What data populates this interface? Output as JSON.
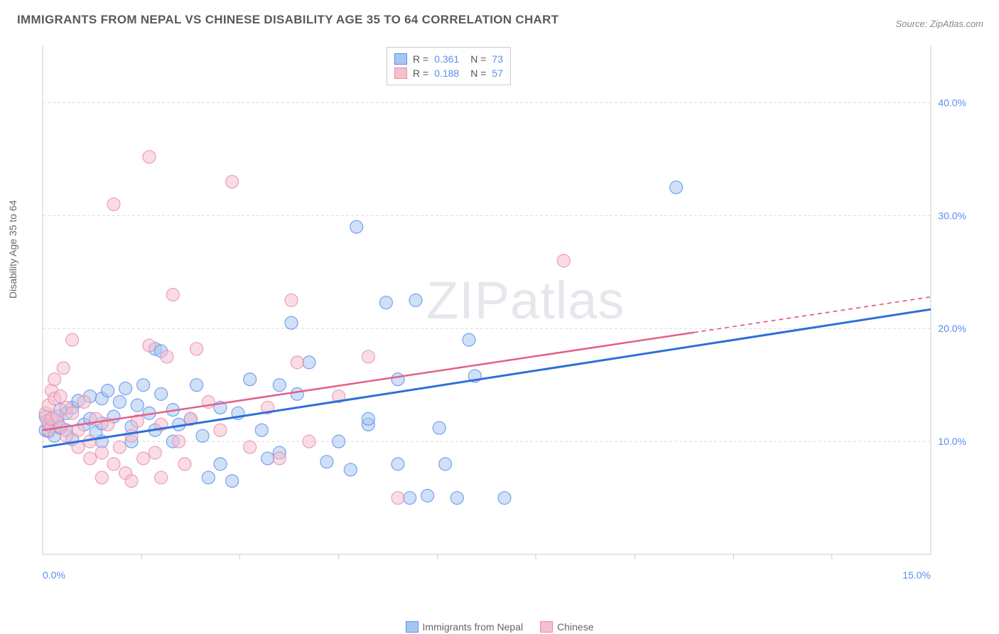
{
  "title": "IMMIGRANTS FROM NEPAL VS CHINESE DISABILITY AGE 35 TO 64 CORRELATION CHART",
  "source": "Source: ZipAtlas.com",
  "y_axis_label": "Disability Age 35 to 64",
  "watermark": "ZIPatlas",
  "chart": {
    "type": "scatter",
    "xlim": [
      0,
      15
    ],
    "ylim": [
      0,
      45
    ],
    "x_ticks": [
      0.0,
      15.0
    ],
    "x_tick_labels": [
      "0.0%",
      "15.0%"
    ],
    "x_minor_ticks": [
      1.67,
      3.33,
      5.0,
      6.67,
      8.33,
      10.0,
      11.67,
      13.33
    ],
    "y_ticks": [
      10.0,
      20.0,
      30.0,
      40.0
    ],
    "y_tick_labels": [
      "10.0%",
      "20.0%",
      "30.0%",
      "40.0%"
    ],
    "background_color": "#ffffff",
    "grid_color": "#dcdcdc",
    "plot_border_color": "#cccccc",
    "marker_radius": 9,
    "marker_opacity": 0.55,
    "series": [
      {
        "name": "Immigrants from Nepal",
        "color_fill": "#a8c7f0",
        "color_stroke": "#5b8def",
        "r_value": "0.361",
        "n_value": "73",
        "trend": {
          "x0": 0,
          "y0": 9.5,
          "x1": 15,
          "y1": 21.7,
          "solid_until": 15,
          "color": "#2e6fd9",
          "width": 3
        },
        "points": [
          [
            0.05,
            11.0
          ],
          [
            0.05,
            12.2
          ],
          [
            0.1,
            11.5
          ],
          [
            0.1,
            10.9
          ],
          [
            0.15,
            11.3
          ],
          [
            0.2,
            12.0
          ],
          [
            0.2,
            10.5
          ],
          [
            0.25,
            11.9
          ],
          [
            0.3,
            11.2
          ],
          [
            0.3,
            12.8
          ],
          [
            0.4,
            12.5
          ],
          [
            0.4,
            11.0
          ],
          [
            0.5,
            13.0
          ],
          [
            0.5,
            10.2
          ],
          [
            0.6,
            13.6
          ],
          [
            0.7,
            11.5
          ],
          [
            0.8,
            14.0
          ],
          [
            0.8,
            12.0
          ],
          [
            0.9,
            10.8
          ],
          [
            1.0,
            13.8
          ],
          [
            1.0,
            11.6
          ],
          [
            1.0,
            10.0
          ],
          [
            1.1,
            14.5
          ],
          [
            1.2,
            12.2
          ],
          [
            1.3,
            13.5
          ],
          [
            1.4,
            14.7
          ],
          [
            1.5,
            11.3
          ],
          [
            1.5,
            10.0
          ],
          [
            1.7,
            15.0
          ],
          [
            1.8,
            12.5
          ],
          [
            1.9,
            11.0
          ],
          [
            1.9,
            18.2
          ],
          [
            2.0,
            18.0
          ],
          [
            2.0,
            14.2
          ],
          [
            2.2,
            12.8
          ],
          [
            2.3,
            11.5
          ],
          [
            2.5,
            12.0
          ],
          [
            2.6,
            15.0
          ],
          [
            2.7,
            10.5
          ],
          [
            2.8,
            6.8
          ],
          [
            3.0,
            13.0
          ],
          [
            3.0,
            8.0
          ],
          [
            3.2,
            6.5
          ],
          [
            3.3,
            12.5
          ],
          [
            3.5,
            15.5
          ],
          [
            3.7,
            11.0
          ],
          [
            3.8,
            8.5
          ],
          [
            4.0,
            9.0
          ],
          [
            4.2,
            20.5
          ],
          [
            4.3,
            14.2
          ],
          [
            4.5,
            17.0
          ],
          [
            4.8,
            8.2
          ],
          [
            5.0,
            10.0
          ],
          [
            5.2,
            7.5
          ],
          [
            5.3,
            29.0
          ],
          [
            5.5,
            11.5
          ],
          [
            5.8,
            22.3
          ],
          [
            6.0,
            15.5
          ],
          [
            6.0,
            8.0
          ],
          [
            6.2,
            5.0
          ],
          [
            6.3,
            22.5
          ],
          [
            6.5,
            5.2
          ],
          [
            6.7,
            11.2
          ],
          [
            6.8,
            8.0
          ],
          [
            7.0,
            5.0
          ],
          [
            7.2,
            19.0
          ],
          [
            7.3,
            15.8
          ],
          [
            7.8,
            5.0
          ],
          [
            10.7,
            32.5
          ],
          [
            5.5,
            12.0
          ],
          [
            4.0,
            15.0
          ],
          [
            2.2,
            10.0
          ],
          [
            1.6,
            13.2
          ]
        ]
      },
      {
        "name": "Chinese",
        "color_fill": "#f4c0cf",
        "color_stroke": "#e88ba5",
        "r_value": "0.188",
        "n_value": "57",
        "trend": {
          "x0": 0,
          "y0": 11.0,
          "x1": 15,
          "y1": 22.8,
          "solid_until": 11,
          "color": "#e26088",
          "width": 2.5
        },
        "points": [
          [
            0.05,
            12.5
          ],
          [
            0.08,
            11.8
          ],
          [
            0.1,
            11.0
          ],
          [
            0.1,
            13.2
          ],
          [
            0.15,
            14.5
          ],
          [
            0.15,
            12.0
          ],
          [
            0.2,
            13.8
          ],
          [
            0.2,
            15.5
          ],
          [
            0.25,
            12.2
          ],
          [
            0.3,
            14.0
          ],
          [
            0.3,
            11.3
          ],
          [
            0.35,
            16.5
          ],
          [
            0.4,
            13.0
          ],
          [
            0.4,
            10.5
          ],
          [
            0.5,
            19.0
          ],
          [
            0.5,
            12.5
          ],
          [
            0.6,
            11.0
          ],
          [
            0.6,
            9.5
          ],
          [
            0.7,
            13.5
          ],
          [
            0.8,
            10.0
          ],
          [
            0.8,
            8.5
          ],
          [
            0.9,
            12.0
          ],
          [
            1.0,
            9.0
          ],
          [
            1.0,
            6.8
          ],
          [
            1.1,
            11.5
          ],
          [
            1.2,
            8.0
          ],
          [
            1.2,
            31.0
          ],
          [
            1.3,
            9.5
          ],
          [
            1.4,
            7.2
          ],
          [
            1.5,
            10.5
          ],
          [
            1.5,
            6.5
          ],
          [
            1.6,
            11.8
          ],
          [
            1.7,
            8.5
          ],
          [
            1.8,
            35.2
          ],
          [
            1.8,
            18.5
          ],
          [
            1.9,
            9.0
          ],
          [
            2.0,
            6.8
          ],
          [
            2.1,
            17.5
          ],
          [
            2.2,
            23.0
          ],
          [
            2.3,
            10.0
          ],
          [
            2.4,
            8.0
          ],
          [
            2.5,
            12.0
          ],
          [
            2.6,
            18.2
          ],
          [
            2.8,
            13.5
          ],
          [
            3.0,
            11.0
          ],
          [
            3.2,
            33.0
          ],
          [
            3.5,
            9.5
          ],
          [
            3.8,
            13.0
          ],
          [
            4.0,
            8.5
          ],
          [
            4.2,
            22.5
          ],
          [
            4.3,
            17.0
          ],
          [
            4.5,
            10.0
          ],
          [
            5.0,
            14.0
          ],
          [
            5.5,
            17.5
          ],
          [
            6.0,
            5.0
          ],
          [
            8.8,
            26.0
          ],
          [
            2.0,
            11.5
          ]
        ]
      }
    ]
  },
  "legend_bottom": [
    {
      "label": "Immigrants from Nepal",
      "fill": "#a8c7f0",
      "stroke": "#5b8def"
    },
    {
      "label": "Chinese",
      "fill": "#f4c0cf",
      "stroke": "#e88ba5"
    }
  ]
}
